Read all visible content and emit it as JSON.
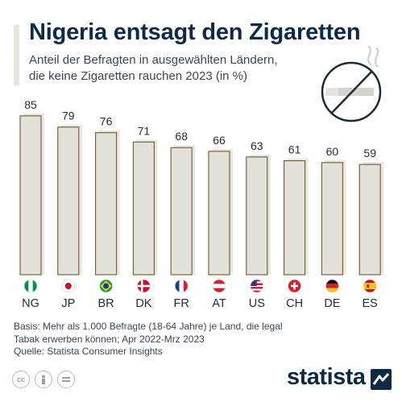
{
  "header": {
    "title": "Nigeria entsagt den Zigaretten",
    "subtitle_line1": "Anteil der Befragten in ausgewählten Ländern,",
    "subtitle_line2": "die keine Zigaretten rauchen 2023 (in %)"
  },
  "chart_data": {
    "type": "bar",
    "categories": [
      "NG",
      "JP",
      "BR",
      "DK",
      "FR",
      "AT",
      "US",
      "CH",
      "DE",
      "ES"
    ],
    "values": [
      85,
      79,
      76,
      71,
      68,
      66,
      63,
      61,
      60,
      59
    ],
    "flags": [
      "nigeria",
      "japan",
      "brazil",
      "denmark",
      "france",
      "austria",
      "usa",
      "switzerland",
      "germany",
      "spain"
    ],
    "ylim": [
      0,
      100
    ],
    "grid": false,
    "colors": {
      "bar_fill": "#e3e1d9",
      "bar_outline": "#6b5a2e",
      "bar_shadow": "#e9e7df",
      "label": "#1e2b3a"
    }
  },
  "footer": {
    "line1": "Basis: Mehr als 1.000 Befragte (18-64 Jahre) je Land, die legal",
    "line2": "Tabak erwerben können; Apr 2022-Mrz 2023",
    "line3": "Quelle: Statista Consumer Insights"
  },
  "branding": {
    "name": "statista",
    "license_icons": [
      "cc-icon",
      "person-icon",
      "equals-icon"
    ]
  }
}
